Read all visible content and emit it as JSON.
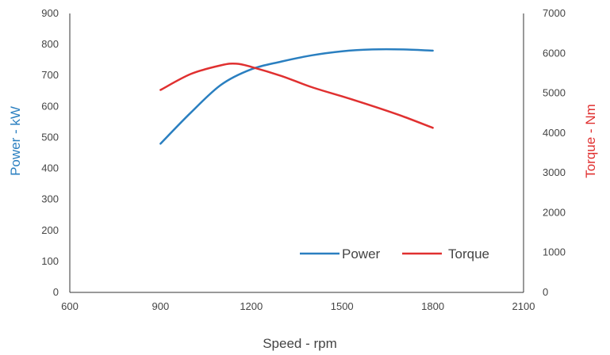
{
  "chart_data": {
    "type": "line",
    "xlabel": "Speed - rpm",
    "ylabel_left": "Power - kW",
    "ylabel_right": "Torque - Nm",
    "xlim": [
      600,
      2100
    ],
    "xticks": [
      600,
      900,
      1200,
      1500,
      1800,
      2100
    ],
    "ylim_left": [
      0,
      900
    ],
    "yticks_left": [
      0,
      100,
      200,
      300,
      400,
      500,
      600,
      700,
      800,
      900
    ],
    "ylim_right": [
      0,
      7000
    ],
    "yticks_right": [
      0,
      1000,
      2000,
      3000,
      4000,
      5000,
      6000,
      7000
    ],
    "grid": false,
    "legend_position": "bottom-right",
    "series": [
      {
        "name": "Power",
        "axis": "left",
        "color": "#2a7fc0",
        "x": [
          900,
          1000,
          1100,
          1200,
          1300,
          1400,
          1500,
          1600,
          1700,
          1800
        ],
        "y": [
          480,
          580,
          670,
          720,
          745,
          765,
          778,
          784,
          784,
          780
        ]
      },
      {
        "name": "Torque",
        "axis": "right",
        "color": "#e03030",
        "x": [
          900,
          1000,
          1100,
          1150,
          1200,
          1300,
          1400,
          1500,
          1600,
          1700,
          1800
        ],
        "y": [
          5080,
          5480,
          5700,
          5740,
          5660,
          5430,
          5150,
          4920,
          4680,
          4420,
          4130
        ]
      }
    ]
  }
}
